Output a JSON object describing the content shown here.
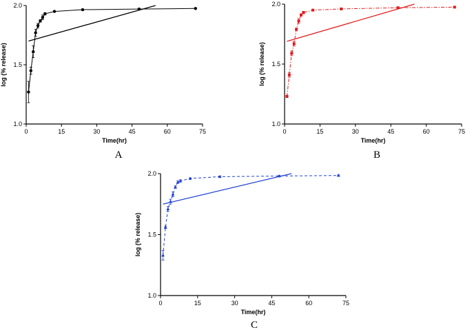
{
  "figure": {
    "panel_count": 3
  },
  "chart_data": [
    {
      "type": "line",
      "panel": "A",
      "color": "#000000",
      "marker": "circle",
      "curve_style": "solid",
      "xlabel": "Time(hr)",
      "ylabel": "log (% release)",
      "xlim": [
        0,
        75
      ],
      "ylim": [
        1.0,
        2.0
      ],
      "xticks": [
        0,
        15,
        30,
        45,
        60,
        75
      ],
      "yticks": [
        1.0,
        1.5,
        2.0
      ],
      "xtick_labels": [
        "0",
        "15",
        "30",
        "45",
        "60",
        "75"
      ],
      "ytick_labels": [
        "1.0",
        "1.5",
        "2.0"
      ],
      "series": [
        {
          "name": "release",
          "x": [
            1,
            2,
            3,
            4,
            5,
            6,
            7,
            8,
            12,
            24,
            48,
            72
          ],
          "y": [
            1.27,
            1.45,
            1.61,
            1.77,
            1.83,
            1.87,
            1.9,
            1.93,
            1.95,
            1.965,
            1.97,
            1.975
          ],
          "error": [
            0.09,
            0.03,
            0.05,
            0.03,
            0.02,
            0.01,
            0.02,
            0.01,
            0.005,
            0.005,
            0.005,
            0.005
          ]
        },
        {
          "name": "linear fit",
          "x": [
            1,
            55
          ],
          "y": [
            1.7,
            2.0
          ]
        }
      ]
    },
    {
      "type": "line",
      "panel": "B",
      "color": "#e31a1c",
      "marker": "square",
      "curve_style": "dashdot",
      "xlabel": "Time(hr)",
      "ylabel": "log (% release)",
      "xlim": [
        0,
        75
      ],
      "ylim": [
        1.0,
        2.0
      ],
      "xticks": [
        0,
        15,
        30,
        45,
        60,
        75
      ],
      "yticks": [
        1.0,
        1.5,
        2.0
      ],
      "xtick_labels": [
        "0",
        "15",
        "30",
        "45",
        "60",
        "75"
      ],
      "ytick_labels": [
        "1.0",
        "1.5",
        "2.0"
      ],
      "series": [
        {
          "name": "release",
          "x": [
            1,
            2,
            3,
            4,
            5,
            6,
            7,
            8,
            12,
            24,
            48,
            72
          ],
          "y": [
            1.23,
            1.41,
            1.59,
            1.67,
            1.79,
            1.86,
            1.91,
            1.93,
            1.95,
            1.96,
            1.97,
            1.975
          ],
          "error": [
            0.01,
            0.02,
            0.02,
            0.02,
            0.01,
            0.02,
            0.01,
            0.01,
            0.005,
            0.005,
            0.005,
            0.005
          ]
        },
        {
          "name": "linear fit",
          "x": [
            1,
            55
          ],
          "y": [
            1.69,
            2.0
          ]
        }
      ]
    },
    {
      "type": "line",
      "panel": "C",
      "color": "#1f3fd6",
      "marker": "triangle",
      "curve_style": "dashed",
      "xlabel": "Time(hr)",
      "ylabel": "log (% release)",
      "xlim": [
        0,
        75
      ],
      "ylim": [
        1.0,
        2.0
      ],
      "xticks": [
        0,
        15,
        30,
        45,
        60,
        75
      ],
      "yticks": [
        1.0,
        1.5,
        2.0
      ],
      "xtick_labels": [
        "0",
        "15",
        "30",
        "45",
        "60",
        "75"
      ],
      "ytick_labels": [
        "1.0",
        "1.5",
        "2.0"
      ],
      "series": [
        {
          "name": "release",
          "x": [
            1,
            2,
            3,
            4,
            5,
            6,
            7,
            8,
            12,
            24,
            48,
            72
          ],
          "y": [
            1.33,
            1.56,
            1.71,
            1.77,
            1.83,
            1.89,
            1.93,
            1.94,
            1.96,
            1.975,
            1.98,
            1.985
          ],
          "error": [
            0.04,
            0.01,
            0.02,
            0.02,
            0.02,
            0.01,
            0.01,
            0.01,
            0.005,
            0.005,
            0.005,
            0.005
          ]
        },
        {
          "name": "linear fit",
          "x": [
            1,
            53
          ],
          "y": [
            1.75,
            2.0
          ]
        }
      ]
    }
  ]
}
